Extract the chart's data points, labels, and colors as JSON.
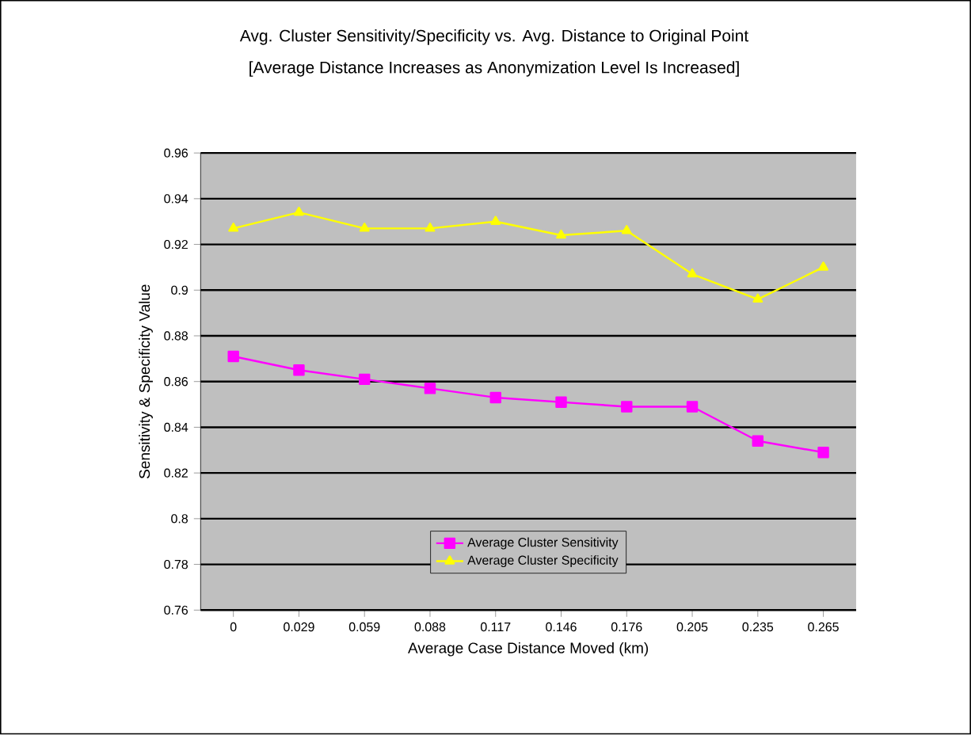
{
  "chart_data": {
    "type": "line",
    "title": "Avg. Cluster Sensitivity/Specificity vs. Avg. Distance to Original Point",
    "subtitle": "[Average Distance Increases as Anonymization Level Is Increased]",
    "xlabel": "Average Case Distance Moved (km)",
    "ylabel": "Sensitivity & Specificity Value",
    "categories": [
      "0",
      "0.029",
      "0.059",
      "0.088",
      "0.117",
      "0.146",
      "0.176",
      "0.205",
      "0.235",
      "0.265"
    ],
    "series": [
      {
        "name": "Average Cluster Sensitivity",
        "color": "#ff00ff",
        "marker": "square",
        "values": [
          0.871,
          0.865,
          0.861,
          0.857,
          0.853,
          0.851,
          0.849,
          0.849,
          0.834,
          0.829
        ]
      },
      {
        "name": "Average Cluster Specificity",
        "color": "#ffff00",
        "marker": "triangle",
        "values": [
          0.927,
          0.934,
          0.927,
          0.927,
          0.93,
          0.924,
          0.926,
          0.907,
          0.896,
          0.91
        ]
      }
    ],
    "ylim": [
      0.76,
      0.96
    ],
    "yticks": [
      0.76,
      0.78,
      0.8,
      0.82,
      0.84,
      0.86,
      0.88,
      0.9,
      0.92,
      0.94,
      0.96
    ],
    "grid": "y",
    "legend": "bottom"
  }
}
